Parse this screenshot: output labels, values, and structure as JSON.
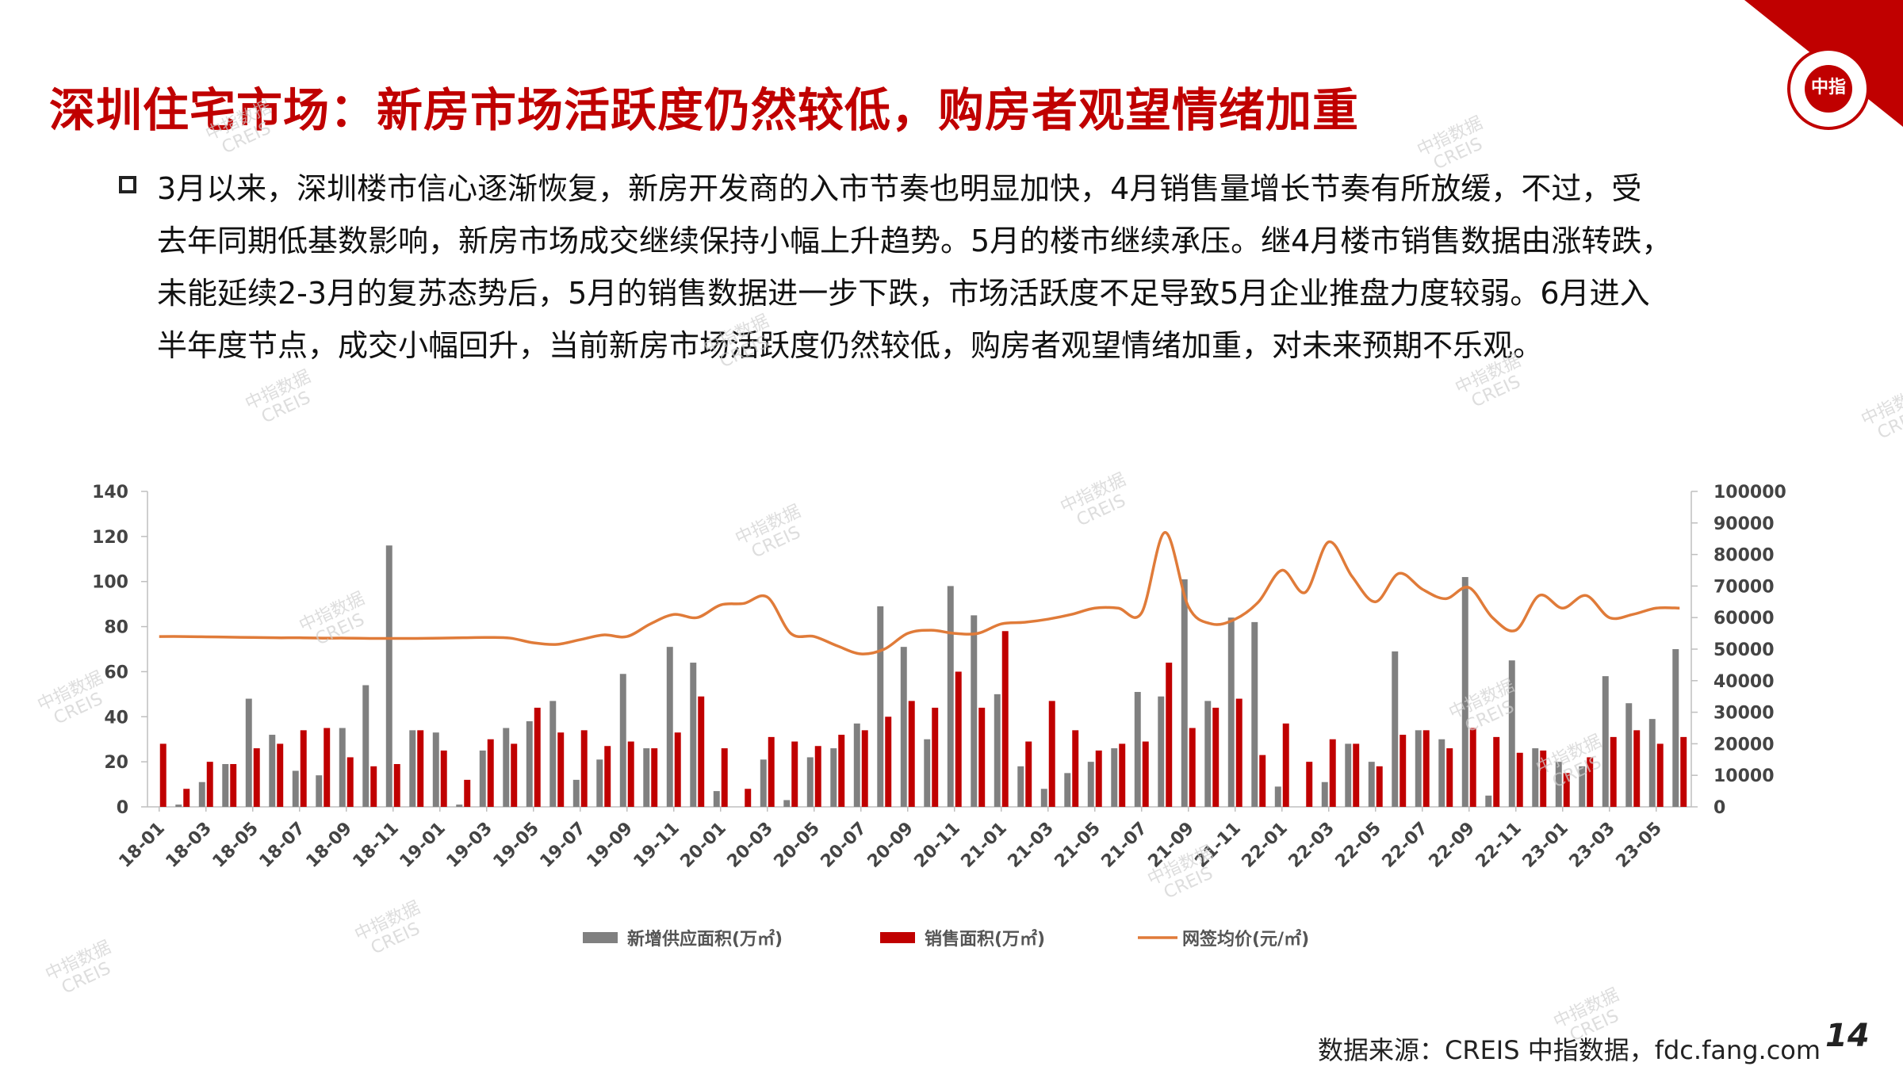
{
  "slide": {
    "title": "深圳住宅市场：新房市场活跃度仍然较低，购房者观望情绪加重",
    "body_lines": [
      "3月以来，深圳楼市信心逐渐恢复，新房开发商的入市节奏也明显加快，4月销售量增长节奏有所放缓，不过，受",
      "去年同期低基数影响，新房市场成交继续保持小幅上升趋势。5月的楼市继续承压。继4月楼市销售数据由涨转跌，",
      "未能延续2-3月的复苏态势后，5月的销售数据进一步下跌，市场活跃度不足导致5月企业推盘力度较弱。6月进入",
      "半年度节点，成交小幅回升，当前新房市场活跃度仍然较低，购房者观望情绪加重，对未来预期不乐观。"
    ],
    "source": "数据来源：CREIS 中指数据，fdc.fang.com",
    "page_number": "14",
    "logo_text": "中指",
    "watermark": "中指数据\nCREIS"
  },
  "colors": {
    "title": "#c00000",
    "supply": "#808080",
    "sales": "#c00000",
    "price": "#e07b39"
  },
  "chart_data": {
    "type": "bar+line",
    "x": [
      "18-01",
      "18-02",
      "18-03",
      "18-04",
      "18-05",
      "18-06",
      "18-07",
      "18-08",
      "18-09",
      "18-10",
      "18-11",
      "18-12",
      "19-01",
      "19-02",
      "19-03",
      "19-04",
      "19-05",
      "19-06",
      "19-07",
      "19-08",
      "19-09",
      "19-10",
      "19-11",
      "19-12",
      "20-01",
      "20-02",
      "20-03",
      "20-04",
      "20-05",
      "20-06",
      "20-07",
      "20-08",
      "20-09",
      "20-10",
      "20-11",
      "20-12",
      "21-01",
      "21-02",
      "21-03",
      "21-04",
      "21-05",
      "21-06",
      "21-07",
      "21-08",
      "21-09",
      "21-10",
      "21-11",
      "21-12",
      "22-01",
      "22-02",
      "22-03",
      "22-04",
      "22-05",
      "22-06",
      "22-07",
      "22-08",
      "22-09",
      "22-10",
      "22-11",
      "22-12",
      "23-01",
      "23-02",
      "23-03",
      "23-04",
      "23-05",
      "23-06"
    ],
    "x_tick_labels": [
      "18-01",
      "18-03",
      "18-05",
      "18-07",
      "18-09",
      "18-11",
      "19-01",
      "19-03",
      "19-05",
      "19-07",
      "19-09",
      "19-11",
      "20-01",
      "20-03",
      "20-05",
      "20-07",
      "20-09",
      "20-11",
      "21-01",
      "21-03",
      "21-05",
      "21-07",
      "21-09",
      "21-11",
      "22-01",
      "22-03",
      "22-05",
      "22-07",
      "22-09",
      "22-11",
      "23-01",
      "23-03",
      "23-05"
    ],
    "y_left": {
      "ylim": [
        0,
        140
      ],
      "ticks": [
        "0",
        "20",
        "40",
        "60",
        "80",
        "100",
        "120",
        "140"
      ]
    },
    "y_right": {
      "ylim": [
        0,
        100000
      ],
      "ticks": [
        "0",
        "10000",
        "20000",
        "30000",
        "40000",
        "50000",
        "60000",
        "70000",
        "80000",
        "90000",
        "100000"
      ]
    },
    "series": [
      {
        "name": "新增供应面积(万㎡)",
        "type": "bar",
        "axis": "left",
        "values": [
          0,
          1,
          11,
          19,
          48,
          32,
          16,
          14,
          35,
          54,
          116,
          34,
          33,
          1,
          25,
          35,
          38,
          47,
          12,
          21,
          59,
          26,
          71,
          64,
          7,
          0,
          21,
          3,
          22,
          26,
          37,
          89,
          71,
          30,
          98,
          85,
          50,
          18,
          8,
          15,
          20,
          26,
          51,
          49,
          101,
          47,
          84,
          82,
          9,
          0,
          11,
          28,
          20,
          69,
          34,
          30,
          102,
          5,
          65,
          26,
          20,
          18,
          58,
          46,
          39,
          70
        ]
      },
      {
        "name": "销售面积(万㎡)",
        "type": "bar",
        "axis": "left",
        "values": [
          28,
          8,
          20,
          19,
          26,
          28,
          34,
          35,
          22,
          18,
          19,
          34,
          25,
          12,
          30,
          28,
          44,
          33,
          34,
          27,
          29,
          26,
          33,
          49,
          26,
          8,
          31,
          29,
          27,
          32,
          34,
          40,
          47,
          44,
          60,
          44,
          78,
          29,
          47,
          34,
          25,
          28,
          29,
          64,
          35,
          44,
          48,
          23,
          37,
          20,
          30,
          28,
          18,
          32,
          34,
          26,
          35,
          31,
          24,
          25,
          15,
          22,
          31,
          34,
          28,
          31
        ]
      },
      {
        "name": "网签均价(元/㎡)",
        "type": "line",
        "axis": "right",
        "values": [
          54000,
          54000,
          53900,
          53800,
          53700,
          53600,
          53600,
          53500,
          53500,
          53400,
          53400,
          53400,
          53500,
          53600,
          53700,
          53500,
          52000,
          51500,
          53000,
          54500,
          54000,
          58000,
          61000,
          60000,
          64000,
          64500,
          66500,
          55000,
          54000,
          51000,
          48500,
          50000,
          55000,
          56000,
          55000,
          55000,
          58000,
          58500,
          59500,
          61000,
          63000,
          63000,
          61500,
          87000,
          63500,
          58000,
          59500,
          65000,
          75000,
          68000,
          84000,
          73000,
          65000,
          74000,
          69000,
          66000,
          69500,
          60000,
          56000,
          67000,
          63000,
          67000,
          60000,
          61000,
          63000,
          63000
        ]
      }
    ],
    "legend_position": "bottom",
    "grid": false
  }
}
